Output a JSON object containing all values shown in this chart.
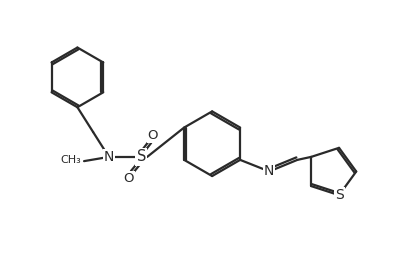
{
  "background_color": "#ffffff",
  "line_color": "#2a2a2a",
  "line_width": 1.6,
  "figsize": [
    4.16,
    2.75
  ],
  "dpi": 100,
  "xlim": [
    0,
    10
  ],
  "ylim": [
    0,
    6.6
  ]
}
